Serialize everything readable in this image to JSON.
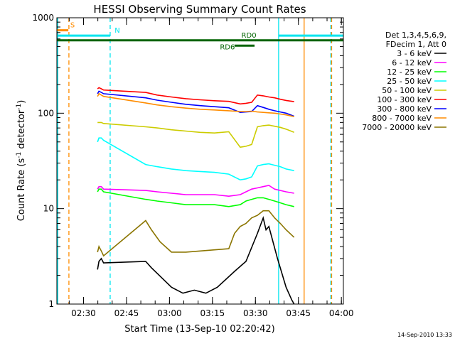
{
  "chart_data": {
    "type": "line",
    "title": "HESSI Observing Summary Count Rates",
    "xlabel": "Start Time (13-Sep-10 02:20:42)",
    "ylabel_main": "Count Rate (s",
    "ylabel_sup1": "-1",
    "ylabel_mid": " detector",
    "ylabel_sup2": "-1",
    "ylabel_end": ")",
    "x_unit": "minutes since 02:20:42",
    "xlim": [
      0,
      100
    ],
    "ylim": [
      1,
      1000
    ],
    "y_scale": "log",
    "x_ticks": [
      {
        "label": "02:30",
        "value": 9.3
      },
      {
        "label": "02:45",
        "value": 24.3
      },
      {
        "label": "03:00",
        "value": 39.3
      },
      {
        "label": "03:15",
        "value": 54.3
      },
      {
        "label": "03:30",
        "value": 69.3
      },
      {
        "label": "03:45",
        "value": 84.3
      },
      {
        "label": "04:00",
        "value": 99.3
      }
    ],
    "y_ticks": [
      {
        "label": "1",
        "value": 1
      },
      {
        "label": "10",
        "value": 10
      },
      {
        "label": "100",
        "value": 100
      },
      {
        "label": "1000",
        "value": 1000
      }
    ],
    "legend": {
      "header1": "Det 1,3,4,5,6,9,",
      "header2": "FDecim 1, Att 0",
      "position": "right"
    },
    "flags": [
      {
        "label": "S",
        "color": "#ff8c00",
        "segments": [
          [
            0,
            4
          ]
        ],
        "value": 740
      },
      {
        "label": "N",
        "color": "#00e5ee",
        "segments": [
          [
            0,
            18.6
          ],
          [
            77.4,
            100
          ]
        ],
        "value": 650
      },
      {
        "label": "RD0",
        "color": "#006400",
        "segments": [
          [
            0,
            100
          ]
        ],
        "value": 580
      },
      {
        "label": "RD6",
        "color": "#006400",
        "segments": [
          [
            62,
            69
          ]
        ],
        "value": 510
      }
    ],
    "vlines": [
      {
        "x": 0.3,
        "color": "#00e5ee",
        "dash": false
      },
      {
        "x": 4.2,
        "color": "#ff8c00",
        "dash": true
      },
      {
        "x": 18.6,
        "color": "#00e5ee",
        "dash": true
      },
      {
        "x": 77.4,
        "color": "#00e5ee",
        "dash": false
      },
      {
        "x": 86.3,
        "color": "#ff8c00",
        "dash": false
      },
      {
        "x": 95.6,
        "color": "#00e5ee",
        "dash": true
      },
      {
        "x": 95.9,
        "color": "#ff8c00",
        "dash": true
      }
    ],
    "series": [
      {
        "name": "3 - 6 keV",
        "color": "#000000",
        "x": [
          14.2,
          14.7,
          15.5,
          16.3,
          31.0,
          33.0,
          40.0,
          44.0,
          48.0,
          52.0,
          56.0,
          62.0,
          66.0,
          70.0,
          72.0,
          73.0,
          74.0,
          77.0,
          80.0,
          82.0,
          82.8
        ],
        "y": [
          2.3,
          2.8,
          3.0,
          2.7,
          2.8,
          2.4,
          1.5,
          1.3,
          1.4,
          1.3,
          1.5,
          2.2,
          2.8,
          5.5,
          8.0,
          6.0,
          6.5,
          3.0,
          1.5,
          1.1,
          1.0
        ]
      },
      {
        "name": "6 - 12 keV",
        "color": "#ff00ff",
        "x": [
          14.2,
          14.7,
          15.5,
          16.3,
          31.0,
          35.0,
          40.0,
          45.0,
          50.0,
          55.0,
          60.0,
          64.0,
          66.0,
          68.0,
          70.0,
          72.0,
          74.0,
          76.0,
          78.0,
          80.0,
          82.8
        ],
        "y": [
          16,
          17,
          17,
          16,
          15.5,
          15,
          14.5,
          14,
          14,
          14,
          13.5,
          14,
          15,
          16,
          16.5,
          17,
          17.5,
          16,
          15.5,
          15,
          14.5
        ]
      },
      {
        "name": "12 - 25 keV",
        "color": "#00ff00",
        "x": [
          14.2,
          14.7,
          15.5,
          16.3,
          31.0,
          35.0,
          40.0,
          45.0,
          50.0,
          55.0,
          60.0,
          64.0,
          66.0,
          68.0,
          70.0,
          72.0,
          74.0,
          76.0,
          78.0,
          80.0,
          82.8
        ],
        "y": [
          15,
          16,
          16,
          15,
          12.5,
          12,
          11.5,
          11,
          11,
          11,
          10.5,
          11,
          12,
          12.5,
          13,
          13,
          12.5,
          12,
          11.5,
          11,
          10.5
        ]
      },
      {
        "name": "25 - 50 keV",
        "color": "#00ffff",
        "x": [
          14.2,
          14.7,
          15.5,
          16.3,
          31.0,
          35.0,
          40.0,
          45.0,
          50.0,
          55.0,
          60.0,
          64.0,
          66.0,
          68.0,
          70.0,
          72.0,
          74.0,
          76.0,
          78.0,
          80.0,
          82.8
        ],
        "y": [
          50,
          55,
          55,
          52,
          29,
          27.5,
          26,
          25,
          24.5,
          24,
          23,
          20,
          20.5,
          21.5,
          28,
          29,
          29.5,
          28.5,
          27.5,
          26,
          25
        ]
      },
      {
        "name": "50 - 100 keV",
        "color": "#cccc00",
        "x": [
          14.2,
          14.7,
          15.5,
          16.3,
          31.0,
          35.0,
          40.0,
          45.0,
          50.0,
          55.0,
          60.0,
          64.0,
          66.0,
          68.0,
          70.0,
          72.0,
          74.0,
          76.0,
          78.0,
          80.0,
          82.8
        ],
        "y": [
          80,
          80,
          80,
          78,
          72,
          70,
          67,
          65,
          63,
          62,
          64,
          44,
          45,
          47,
          72,
          74,
          75,
          73,
          71,
          68,
          63
        ]
      },
      {
        "name": "100 - 300 keV",
        "color": "#ff0000",
        "x": [
          14.2,
          14.7,
          15.5,
          16.3,
          31.0,
          35.0,
          40.0,
          45.0,
          50.0,
          55.0,
          60.0,
          64.0,
          66.0,
          68.0,
          70.0,
          72.0,
          74.0,
          76.0,
          78.0,
          80.0,
          82.8
        ],
        "y": [
          180,
          185,
          180,
          175,
          165,
          155,
          148,
          142,
          138,
          135,
          133,
          125,
          127,
          130,
          155,
          152,
          148,
          145,
          140,
          136,
          132
        ]
      },
      {
        "name": "300 - 800 keV",
        "color": "#0000ff",
        "x": [
          14.2,
          14.7,
          15.5,
          16.3,
          31.0,
          35.0,
          40.0,
          45.0,
          50.0,
          55.0,
          60.0,
          64.0,
          66.0,
          68.0,
          70.0,
          72.0,
          74.0,
          76.0,
          78.0,
          80.0,
          82.8
        ],
        "y": [
          160,
          170,
          165,
          160,
          145,
          137,
          130,
          124,
          120,
          117,
          114,
          102,
          103,
          104,
          120,
          115,
          110,
          106,
          103,
          100,
          93
        ]
      },
      {
        "name": "800 - 7000 keV",
        "color": "#ff8c00",
        "x": [
          14.2,
          14.7,
          15.5,
          16.3,
          31.0,
          35.0,
          40.0,
          45.0,
          50.0,
          55.0,
          60.0,
          64.0,
          66.0,
          68.0,
          70.0,
          72.0,
          74.0,
          76.0,
          78.0,
          80.0,
          82.8
        ],
        "y": [
          150,
          160,
          155,
          150,
          128,
          122,
          117,
          113,
          110,
          108,
          106,
          104,
          104,
          105,
          103,
          102,
          101,
          100,
          98,
          96,
          92
        ]
      },
      {
        "name": "7000 - 20000 keV",
        "color": "#8b7500",
        "x": [
          14.2,
          14.7,
          15.5,
          16.3,
          31.0,
          33.0,
          36.0,
          40.0,
          45.0,
          50.0,
          55.0,
          60.0,
          62.0,
          64.0,
          66.0,
          68.0,
          70.0,
          72.0,
          74.0,
          76.0,
          78.0,
          80.0,
          82.8
        ],
        "y": [
          3.5,
          4.0,
          3.6,
          3.2,
          7.5,
          6.0,
          4.5,
          3.5,
          3.5,
          3.6,
          3.7,
          3.8,
          5.5,
          6.5,
          7.0,
          8.0,
          8.5,
          9.5,
          9.5,
          8.0,
          7.0,
          6.0,
          5.0
        ]
      }
    ]
  },
  "footer_timestamp": "14-Sep-2010 13:33"
}
